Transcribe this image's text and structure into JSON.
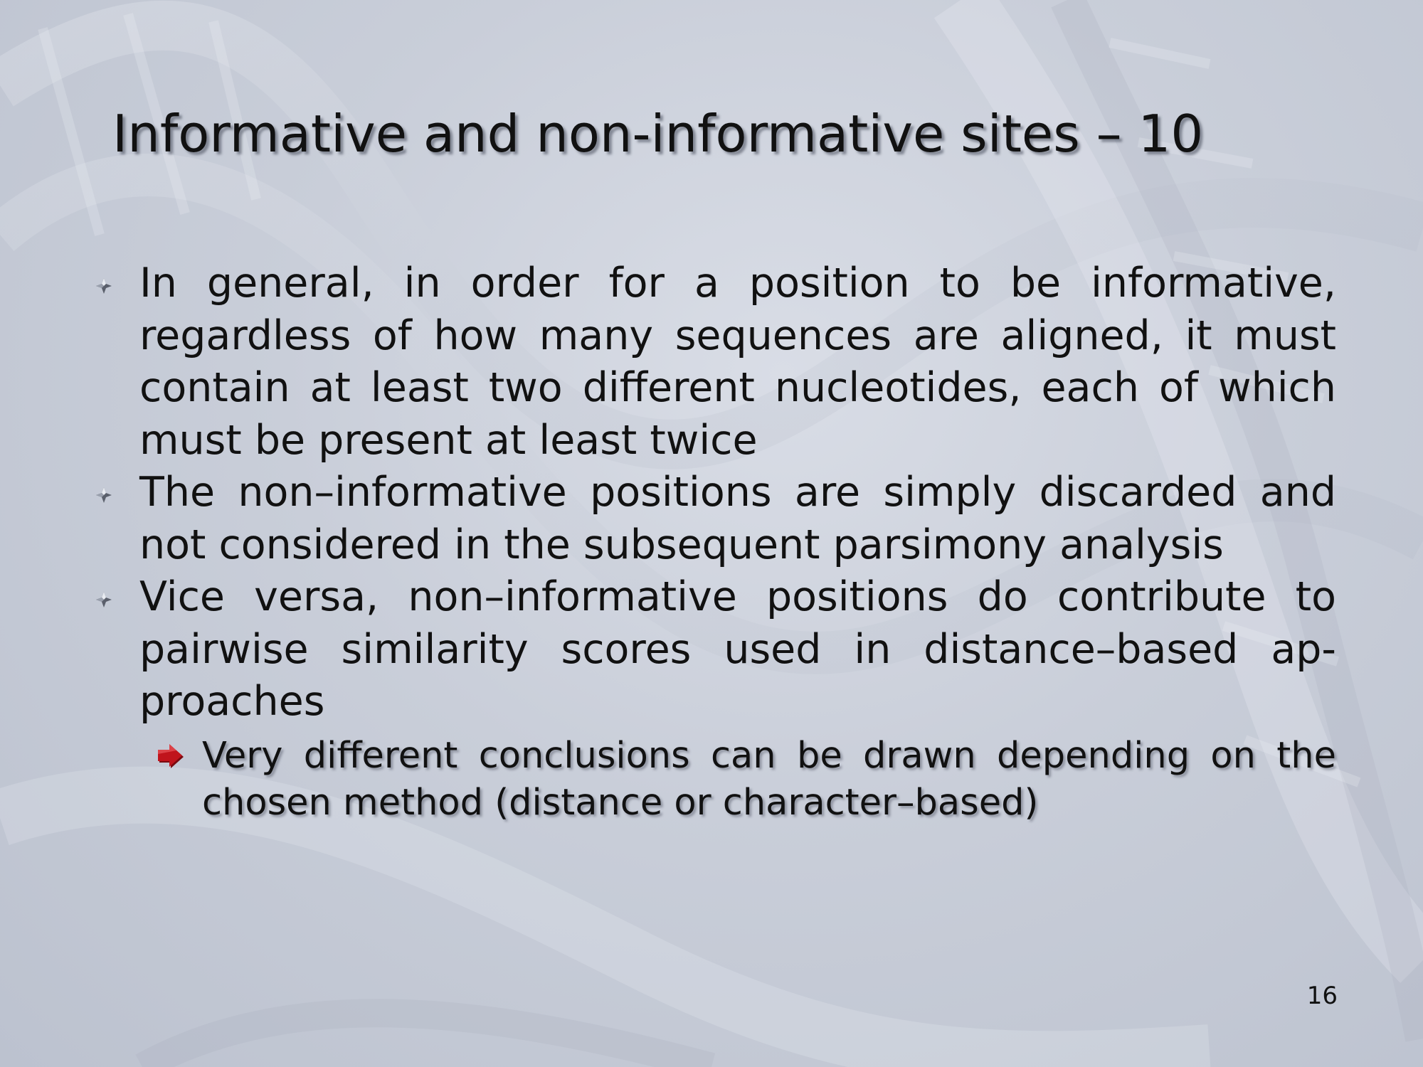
{
  "slide": {
    "title": "Informative and non-informative sites – 10",
    "bullets": [
      {
        "text": "In general, in order for a position to be informative, regardless of how many sequences are aligned, it must contain at least two different nucleotides, each of which must be present at least twice"
      },
      {
        "text": "The non–informative positions are simply discarded and not considered in the subsequent parsimony analysis"
      },
      {
        "text": "Vice versa, non–informative positions do contribute to pairwise similarity scores used in distance–based ap-proaches"
      }
    ],
    "sub_bullet": {
      "text": "Very different conclusions can be drawn depending on the chosen method (distance or character–based)"
    },
    "page_number": "16"
  },
  "colors": {
    "text": "#111111",
    "background": "#c9ced9",
    "sub_bullet_arrow": "#c0141c"
  },
  "icons": {
    "bullet": "four-point-star-bullet-icon",
    "sub_bullet": "red-arrow-icon"
  }
}
